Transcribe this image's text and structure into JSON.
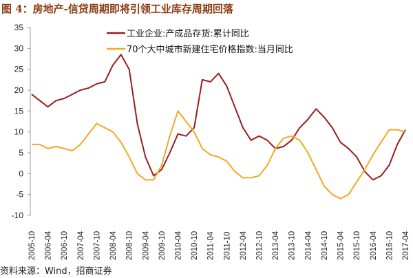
{
  "title": "图 4：房地产-信贷周期即将引领工业库存周期回落",
  "source": "资料来源：Wind，招商证券",
  "chart_data": {
    "type": "line",
    "title": "图 4：房地产-信贷周期即将引领工业库存周期回落",
    "xlabel": "",
    "ylabel": "",
    "ylim": [
      -10,
      35
    ],
    "yticks": [
      "35",
      "30",
      "25",
      "20",
      "15",
      "10",
      "5",
      "0",
      "-5",
      "-10"
    ],
    "xtick_labels": [
      "2005-10",
      "2006-04",
      "2006-10",
      "2007-04",
      "2007-10",
      "2008-04",
      "2008-10",
      "2009-04",
      "2009-10",
      "2010-04",
      "2010-10",
      "2011-04",
      "2011-10",
      "2012-04",
      "2012-10",
      "2013-04",
      "2013-10",
      "2014-04",
      "2014-10",
      "2015-04",
      "2015-10",
      "2016-04",
      "2016-10",
      "2017-04"
    ],
    "x": [
      "2005-10",
      "2006-01",
      "2006-04",
      "2006-07",
      "2006-10",
      "2007-01",
      "2007-04",
      "2007-07",
      "2007-10",
      "2008-01",
      "2008-04",
      "2008-07",
      "2008-10",
      "2009-01",
      "2009-04",
      "2009-07",
      "2009-10",
      "2010-01",
      "2010-04",
      "2010-07",
      "2010-10",
      "2011-01",
      "2011-04",
      "2011-07",
      "2011-10",
      "2012-01",
      "2012-04",
      "2012-07",
      "2012-10",
      "2013-01",
      "2013-04",
      "2013-07",
      "2013-10",
      "2014-01",
      "2014-04",
      "2014-07",
      "2014-10",
      "2015-01",
      "2015-04",
      "2015-07",
      "2015-10",
      "2016-01",
      "2016-04",
      "2016-07",
      "2016-10",
      "2017-01",
      "2017-04"
    ],
    "legend_position": "top-center",
    "grid": false,
    "series": [
      {
        "name": "工业企业:产成品存货:累计同比",
        "color": "#9b1c1c",
        "values": [
          19,
          17.5,
          16,
          17.5,
          18,
          19,
          20,
          20.5,
          21.5,
          22,
          26,
          28.5,
          25,
          12,
          4,
          -0.5,
          1,
          5,
          9.5,
          9,
          11,
          22.5,
          22,
          24,
          21,
          16,
          11,
          8,
          9,
          8,
          6,
          6.5,
          8,
          11,
          13,
          15.5,
          13.5,
          11,
          7.5,
          6,
          4,
          0.5,
          -1.5,
          -0.5,
          2,
          7,
          10.5
        ]
      },
      {
        "name": "70个大中城市新建住宅价格指数:当月同比",
        "color": "#f5a623",
        "values": [
          7,
          7,
          6,
          6.5,
          6,
          5.5,
          7,
          9.5,
          12,
          11,
          10,
          7.5,
          4,
          0,
          -1.5,
          -1.5,
          2,
          9,
          15,
          12.5,
          10,
          6,
          4.5,
          4,
          3,
          0.5,
          -1,
          -1,
          -0.5,
          2,
          6,
          8.5,
          9,
          8,
          5,
          1,
          -3,
          -5,
          -6,
          -5,
          -2,
          1,
          4.5,
          7.5,
          10.5,
          10.5,
          10
        ]
      }
    ]
  }
}
